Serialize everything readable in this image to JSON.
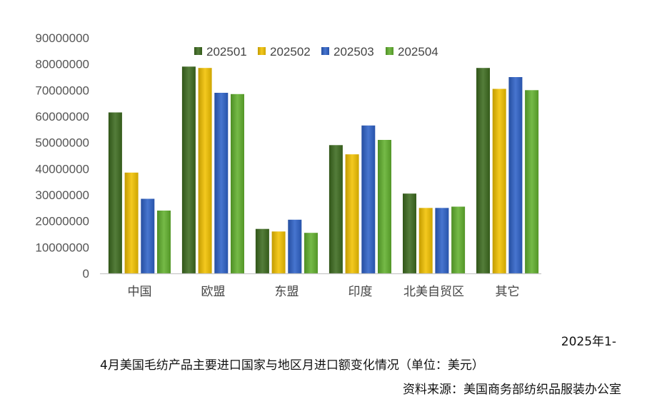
{
  "chart_data": {
    "type": "bar",
    "categories": [
      "中国",
      "欧盟",
      "东盟",
      "印度",
      "北美自贸区",
      "其它"
    ],
    "series": [
      {
        "name": "202501",
        "color": "#3d6b1f",
        "values": [
          61500000,
          79000000,
          17000000,
          49000000,
          30500000,
          78500000
        ]
      },
      {
        "name": "202502",
        "color": "#f2c200",
        "values": [
          38500000,
          78500000,
          16000000,
          45500000,
          25000000,
          70500000
        ]
      },
      {
        "name": "202503",
        "color": "#2e62c8",
        "values": [
          28500000,
          69000000,
          20500000,
          56500000,
          25000000,
          75000000
        ]
      },
      {
        "name": "202504",
        "color": "#62b12e",
        "values": [
          24000000,
          68500000,
          15500000,
          51000000,
          25500000,
          70000000
        ]
      }
    ],
    "yticks": [
      "0",
      "10000000",
      "20000000",
      "30000000",
      "40000000",
      "50000000",
      "60000000",
      "70000000",
      "80000000",
      "90000000"
    ],
    "ylim": [
      0,
      90000000
    ],
    "legend_position": "top",
    "grid": false
  },
  "caption": {
    "line1": "2025年1-",
    "line2": "4月美国毛纺产品主要进口国家与地区月进口额变化情况（单位：美元）",
    "line3": "资料来源：美国商务部纺织品服装办公室"
  }
}
